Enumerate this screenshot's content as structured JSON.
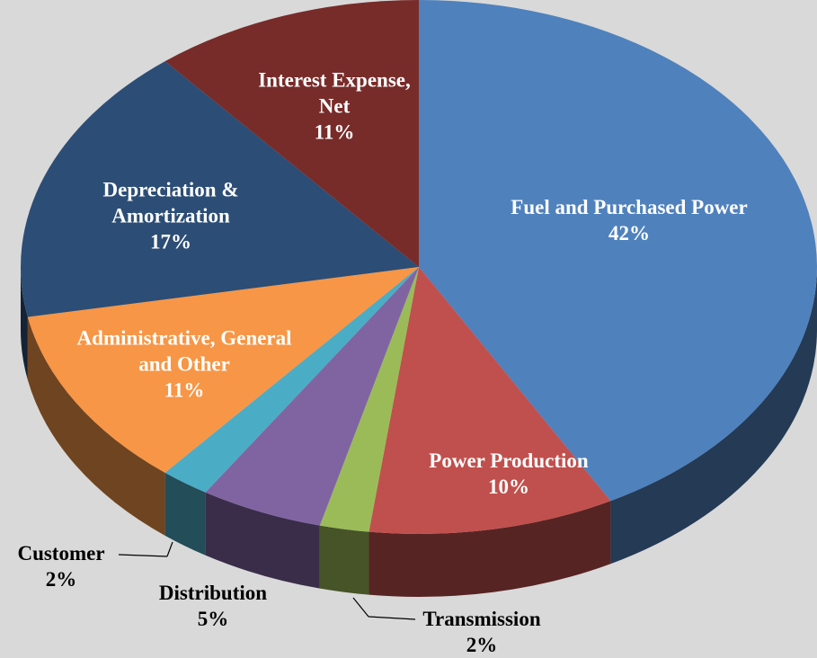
{
  "chart_data": {
    "type": "pie",
    "categories": [
      "Fuel and Purchased Power",
      "Power Production",
      "Transmission",
      "Distribution",
      "Customer",
      "Administrative, General and Other",
      "Depreciation & Amortization",
      "Interest Expense, Net"
    ],
    "values": [
      42,
      10,
      2,
      5,
      2,
      11,
      17,
      11
    ],
    "value_labels": [
      "42%",
      "10%",
      "2%",
      "5%",
      "2%",
      "11%",
      "17%",
      "11%"
    ],
    "colors": [
      "#4f81bd",
      "#c0504d",
      "#9bbb59",
      "#8064a2",
      "#4bacc6",
      "#f79646",
      "#2c4d75",
      "#772c2a"
    ]
  }
}
